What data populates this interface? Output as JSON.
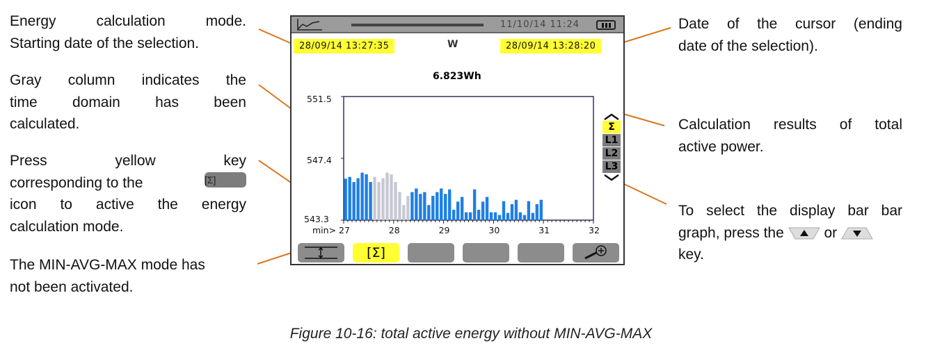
{
  "annotations": {
    "energy_mode": [
      "Energy calculation mode.",
      "Starting date of the selection."
    ],
    "gray_column": [
      "Gray column indicates the",
      "time domain has been",
      "calculated."
    ],
    "press_key": [
      "Press yellow key",
      "corresponding to the",
      "icon to active the energy",
      "calculation mode."
    ],
    "press_key_icon_label": "[Σ]",
    "min_avg_max": [
      "The MIN-AVG-MAX mode has",
      "not been activated."
    ],
    "cursor_date": [
      "Date of the cursor (ending",
      "date of the selection)."
    ],
    "results": [
      "Calculation results of total",
      "active power."
    ],
    "select_bar": [
      "To select the display bar bar",
      "graph, press the",
      "or",
      "key."
    ],
    "select_bar_icons": [
      "up-arrow-key-icon",
      "down-arrow-key-icon"
    ]
  },
  "screen": {
    "clock": "11/10/14  11:24",
    "start_date": "28/09/14  13:27:35",
    "end_date": "28/09/14  13:28:20",
    "unit": "W",
    "result": "6.823Wh",
    "channels": [
      "Σ",
      "L1",
      "L2",
      "L3"
    ],
    "selected_channel": "Σ",
    "function_keys": [
      "min-avg-max-icon",
      "[Σ]",
      "",
      "",
      "",
      "zoom-in-icon"
    ],
    "colors": {
      "highlight": "#ffff33",
      "bar": "#1e7fe6",
      "bar_calculated": "#c8c8d4",
      "leader": "#d9761e"
    }
  },
  "chart_data": {
    "type": "bar",
    "x_prefix": "min>",
    "xticks": [
      "27",
      "28",
      "29",
      "30",
      "31",
      "32"
    ],
    "xlim": [
      27,
      32
    ],
    "yticks": [
      "551.5",
      "547.4",
      "543.3"
    ],
    "ylim": [
      543.3,
      551.5
    ],
    "bar_interval_min": 0.0833,
    "calculated_range": [
      8,
      16
    ],
    "values": [
      546.05,
      546.17,
      545.83,
      546.08,
      546.45,
      546.34,
      545.83,
      546.17,
      545.83,
      546.08,
      546.45,
      546.34,
      545.83,
      545.17,
      544.3,
      544.9,
      545.16,
      545.4,
      545.04,
      545.16,
      544.3,
      544.91,
      545.16,
      545.4,
      545.04,
      545.34,
      543.99,
      544.53,
      544.84,
      543.82,
      543.82,
      545.34,
      543.99,
      544.53,
      544.84,
      543.82,
      543.82,
      543.64,
      544.56,
      543.78,
      544.36,
      544.65,
      543.82,
      543.64,
      544.56,
      543.78,
      544.36,
      544.65
    ]
  },
  "caption": "Figure 10-16: total active energy without MIN-AVG-MAX"
}
